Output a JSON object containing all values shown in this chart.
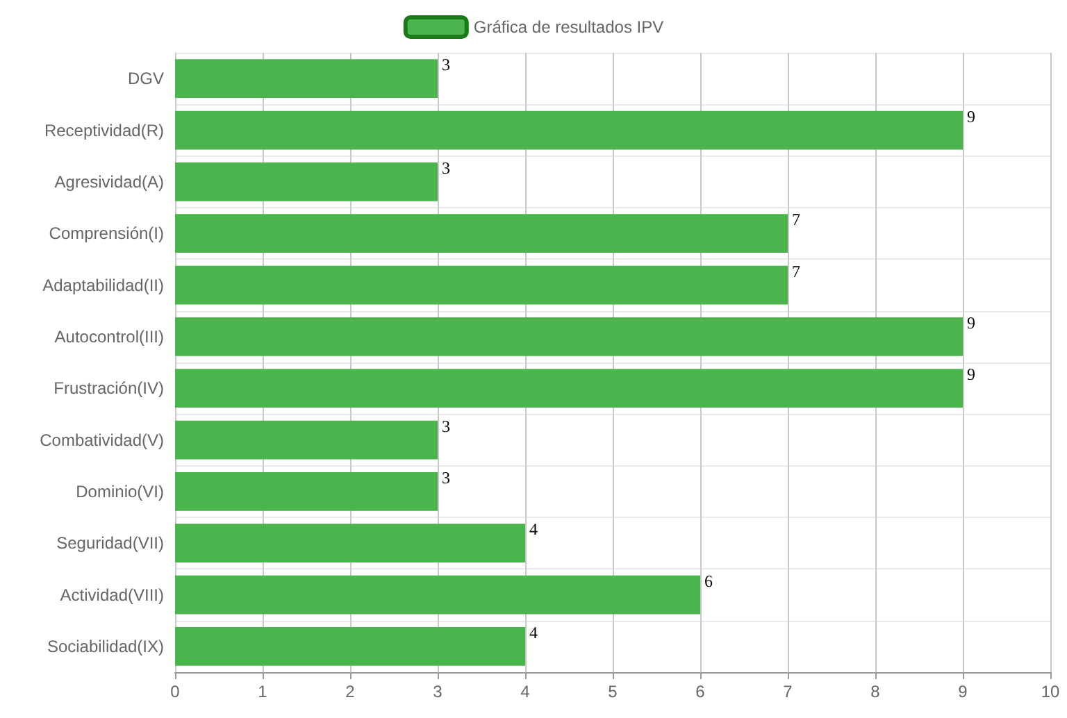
{
  "chart_data": {
    "type": "bar",
    "orientation": "horizontal",
    "categories": [
      "DGV",
      "Receptividad(R)",
      "Agresividad(A)",
      "Comprensión(I)",
      "Adaptabilidad(II)",
      "Autocontrol(III)",
      "Frustración(IV)",
      "Combatividad(V)",
      "Dominio(VI)",
      "Seguridad(VII)",
      "Actividad(VIII)",
      "Sociabilidad(IX)"
    ],
    "series": [
      {
        "name": "Gráfica de resultados IPV",
        "color": "#4cb44c",
        "values": [
          3,
          9,
          3,
          7,
          7,
          9,
          9,
          3,
          3,
          4,
          6,
          4
        ]
      }
    ],
    "xlim": [
      0,
      10
    ],
    "xticks": [
      0,
      1,
      2,
      3,
      4,
      5,
      6,
      7,
      8,
      9,
      10
    ],
    "grid": true,
    "legend": "top",
    "data_labels": true
  }
}
